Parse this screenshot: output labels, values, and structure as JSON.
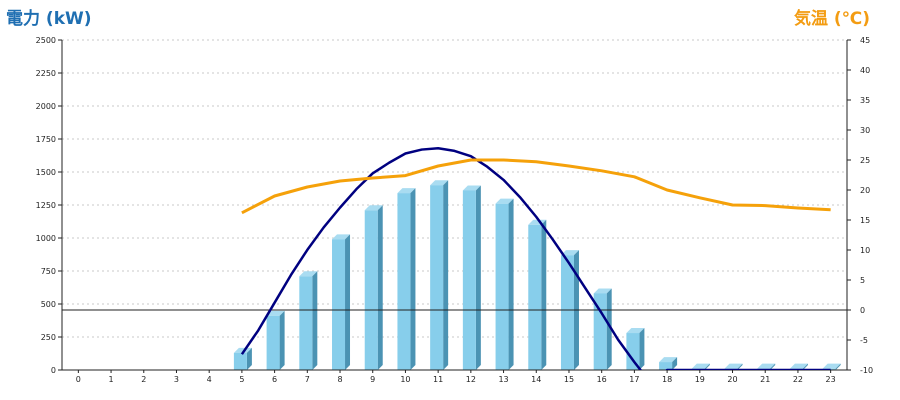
{
  "chart_data": {
    "type": "bar",
    "title_left": "電力 (kW)",
    "title_right": "気温 (℃)",
    "colors": {
      "left_title": "#1f6fb2",
      "right_title": "#f39c12",
      "bar_front": "#87CEEB",
      "bar_side": "#4b93b3",
      "bar_top": "#a9dcf1",
      "line_power": "#000080",
      "line_temp": "#f5a10a",
      "grid": "#c8c8c8"
    },
    "x_labels": [
      "0",
      "1",
      "2",
      "3",
      "4",
      "5",
      "6",
      "7",
      "8",
      "9",
      "10",
      "11",
      "12",
      "13",
      "14",
      "15",
      "16",
      "17",
      "18",
      "19",
      "20",
      "21",
      "22",
      "23"
    ],
    "y_left": {
      "min": 0,
      "max": 2500,
      "ticks": [
        "0",
        "250",
        "500",
        "750",
        "1000",
        "1250",
        "1500",
        "1750",
        "2000",
        "2250",
        "2500"
      ]
    },
    "y_right": {
      "min": -10,
      "max": 45,
      "ticks": [
        "-10",
        "-5",
        "0",
        "5",
        "10",
        "15",
        "20",
        "25",
        "30",
        "35",
        "40",
        "45"
      ]
    },
    "grid": true,
    "reference_line_right": 0,
    "series": [
      {
        "kind": "bar",
        "axis": "left",
        "values": [
          0,
          0,
          0,
          0,
          0,
          130,
          410,
          710,
          990,
          1210,
          1340,
          1400,
          1360,
          1260,
          1100,
          870,
          580,
          280,
          60,
          10,
          10,
          10,
          10,
          10
        ]
      },
      {
        "kind": "line",
        "axis": "left",
        "x": [
          5,
          5.5,
          6,
          6.5,
          7,
          7.5,
          8,
          8.5,
          9,
          9.5,
          10,
          10.5,
          11,
          11.5,
          12,
          12.5,
          13,
          13.5,
          14,
          14.5,
          15,
          15.5,
          16,
          16.5,
          17,
          17.5,
          18,
          18.5,
          19,
          20,
          21,
          22,
          23
        ],
        "values": [
          120,
          300,
          510,
          720,
          910,
          1080,
          1230,
          1370,
          1490,
          1570,
          1640,
          1670,
          1680,
          1660,
          1620,
          1540,
          1440,
          1310,
          1160,
          990,
          810,
          620,
          430,
          230,
          60,
          -100,
          0,
          0,
          0,
          0,
          0,
          0,
          0
        ]
      },
      {
        "kind": "line",
        "axis": "right",
        "x": [
          5,
          6,
          7,
          8,
          9,
          10,
          11,
          12,
          13,
          14,
          15,
          16,
          17,
          18,
          19,
          20,
          21,
          22,
          23
        ],
        "values": [
          16.2,
          19,
          20.5,
          21.5,
          22,
          22.4,
          24,
          25,
          25,
          24.7,
          24,
          23.2,
          22.2,
          20,
          18.7,
          17.5,
          17.4,
          17,
          16.7
        ]
      }
    ]
  }
}
